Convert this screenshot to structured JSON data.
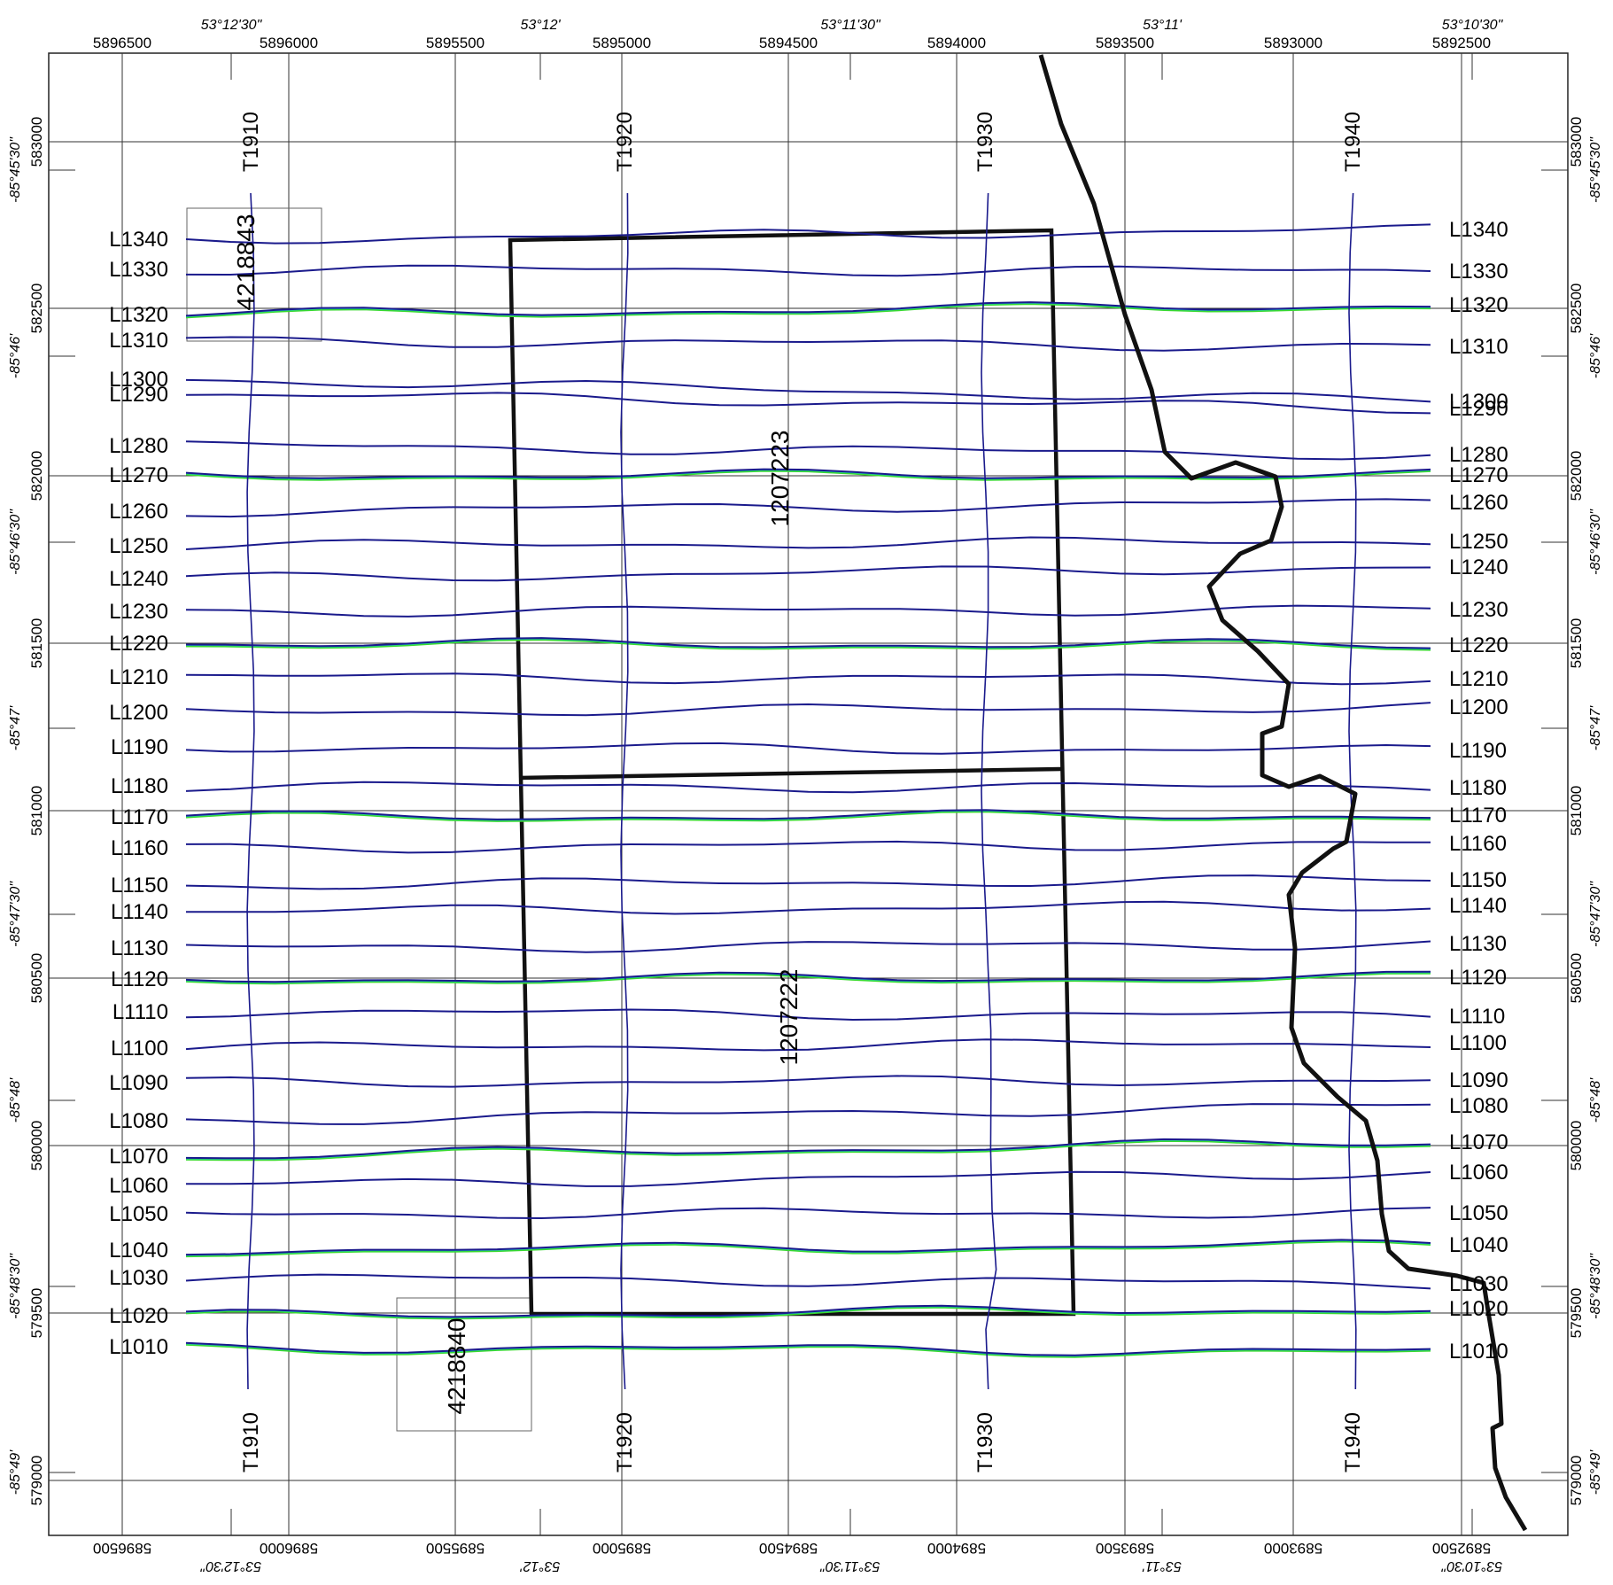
{
  "map": {
    "top_northing_labels": [
      "5896500",
      "5896000",
      "5895500",
      "5895000",
      "5894500",
      "5894000",
      "5893500",
      "5893000",
      "5892500"
    ],
    "top_longitude_labels": [
      "53°12'30\"",
      "53°12'",
      "53°11'30\"",
      "53°11'",
      "53°10'30\""
    ],
    "bottom_northing_labels": [
      "5896500",
      "5896000",
      "5895500",
      "5895000",
      "5894500",
      "5894000",
      "5893500",
      "5893000",
      "5892500"
    ],
    "bottom_longitude_labels": [
      "53°12'30\"",
      "53°12'",
      "53°11'30\"",
      "53°11'",
      "53°10'30\""
    ],
    "easting_labels": [
      "583000",
      "582500",
      "582000",
      "581500",
      "581000",
      "580500",
      "580000",
      "579500",
      "579000"
    ],
    "latitude_labels": [
      "-85°45'30\"",
      "-85°46'",
      "-85°46'30\"",
      "-85°47'",
      "-85°47'30\"",
      "-85°48'",
      "-85°48'30\"",
      "-85°49'"
    ],
    "survey_lines": [
      "L1340",
      "L1330",
      "L1320",
      "L1310",
      "L1300",
      "L1290",
      "L1280",
      "L1270",
      "L1260",
      "L1250",
      "L1240",
      "L1230",
      "L1220",
      "L1210",
      "L1200",
      "L1190",
      "L1180",
      "L1170",
      "L1160",
      "L1150",
      "L1140",
      "L1130",
      "L1120",
      "L1110",
      "L1100",
      "L1090",
      "L1080",
      "L1070",
      "L1060",
      "L1050",
      "L1040",
      "L1030",
      "L1020",
      "L1010"
    ],
    "tie_lines": [
      "T1910",
      "T1920",
      "T1930",
      "T1940"
    ],
    "claims": [
      "4218843",
      "1207223",
      "1207222",
      "4218840"
    ],
    "colors": {
      "grid": "#333333",
      "survey_line": "#1a1a8c",
      "claim_boundary": "#111111",
      "profile_green": "#39d92f",
      "profile_cyan": "#20c8c8"
    }
  }
}
